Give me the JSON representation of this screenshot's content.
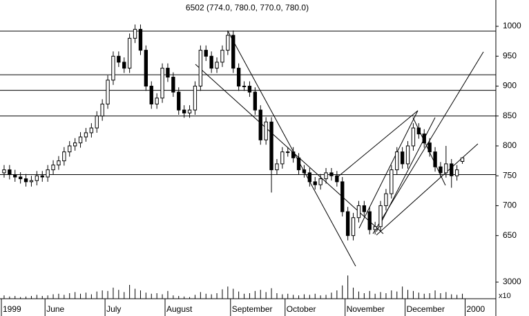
{
  "chart_data": {
    "type": "candlestick",
    "title": "6502 (774.0, 780.0, 770.0, 780.0)",
    "categories": [
      "1999",
      null,
      null,
      null,
      null,
      null,
      null,
      null,
      "June",
      null,
      null,
      null,
      null,
      null,
      null,
      null,
      null,
      null,
      null,
      "July",
      null,
      null,
      null,
      null,
      null,
      null,
      null,
      null,
      null,
      null,
      "August",
      null,
      null,
      null,
      null,
      null,
      null,
      null,
      null,
      null,
      null,
      null,
      "September",
      null,
      null,
      null,
      null,
      null,
      null,
      null,
      null,
      null,
      "October",
      null,
      null,
      null,
      null,
      null,
      null,
      null,
      null,
      null,
      null,
      "November",
      null,
      null,
      null,
      null,
      null,
      null,
      null,
      null,
      null,
      null,
      "December",
      null,
      null,
      null,
      null,
      null,
      null,
      null,
      null,
      null,
      null,
      "2000"
    ],
    "open": [
      755,
      760,
      752,
      748,
      745,
      740,
      742,
      750,
      748,
      760,
      768,
      775,
      790,
      800,
      805,
      815,
      822,
      830,
      850,
      870,
      910,
      950,
      940,
      930,
      980,
      995,
      960,
      900,
      870,
      880,
      930,
      915,
      890,
      860,
      855,
      860,
      900,
      960,
      950,
      930,
      940,
      960,
      985,
      930,
      900,
      900,
      890,
      860,
      810,
      840,
      760,
      770,
      790,
      790,
      780,
      760,
      755,
      740,
      735,
      745,
      755,
      750,
      740,
      690,
      650,
      680,
      700,
      690,
      660,
      665,
      700,
      720,
      760,
      790,
      770,
      800,
      830,
      820,
      805,
      790,
      765,
      755,
      770,
      750,
      774,
      null
    ],
    "high": [
      768,
      768,
      760,
      756,
      753,
      750,
      758,
      758,
      768,
      776,
      783,
      798,
      808,
      813,
      823,
      830,
      838,
      858,
      878,
      918,
      958,
      958,
      948,
      988,
      1003,
      1003,
      968,
      908,
      888,
      938,
      938,
      923,
      898,
      868,
      868,
      908,
      968,
      968,
      958,
      948,
      968,
      993,
      993,
      938,
      908,
      908,
      898,
      868,
      848,
      848,
      778,
      798,
      798,
      798,
      788,
      768,
      763,
      748,
      753,
      763,
      763,
      758,
      748,
      698,
      688,
      708,
      708,
      698,
      673,
      708,
      728,
      768,
      798,
      798,
      808,
      838,
      838,
      828,
      813,
      798,
      773,
      800,
      778,
      768,
      780,
      null
    ],
    "low": [
      747,
      744,
      740,
      737,
      732,
      732,
      734,
      740,
      740,
      752,
      760,
      767,
      782,
      792,
      797,
      807,
      814,
      822,
      842,
      862,
      902,
      932,
      922,
      922,
      972,
      952,
      892,
      862,
      862,
      872,
      907,
      882,
      852,
      847,
      847,
      852,
      892,
      942,
      922,
      922,
      932,
      952,
      922,
      892,
      892,
      882,
      852,
      802,
      802,
      722,
      752,
      762,
      782,
      772,
      752,
      747,
      732,
      727,
      727,
      737,
      742,
      732,
      682,
      642,
      642,
      672,
      682,
      652,
      652,
      657,
      692,
      712,
      752,
      762,
      762,
      792,
      812,
      797,
      782,
      757,
      747,
      747,
      730,
      742,
      770,
      null
    ],
    "close": [
      760,
      752,
      748,
      745,
      740,
      742,
      750,
      748,
      760,
      768,
      775,
      790,
      800,
      805,
      815,
      822,
      830,
      850,
      870,
      910,
      950,
      940,
      930,
      980,
      995,
      960,
      900,
      870,
      880,
      930,
      915,
      890,
      860,
      855,
      860,
      900,
      960,
      950,
      930,
      940,
      960,
      985,
      930,
      900,
      900,
      890,
      860,
      810,
      840,
      760,
      770,
      790,
      790,
      780,
      760,
      755,
      740,
      735,
      745,
      755,
      750,
      740,
      690,
      650,
      680,
      700,
      690,
      660,
      665,
      700,
      720,
      760,
      790,
      770,
      800,
      830,
      820,
      805,
      790,
      765,
      755,
      770,
      750,
      760,
      780,
      null
    ],
    "volume": [
      600,
      400,
      500,
      300,
      400,
      500,
      700,
      500,
      600,
      800,
      900,
      700,
      1000,
      1200,
      900,
      1100,
      800,
      1300,
      1500,
      1400,
      2000,
      1600,
      1200,
      2500,
      1800,
      1500,
      1100,
      900,
      1000,
      800,
      1400,
      600,
      500,
      400,
      300,
      700,
      1200,
      900,
      800,
      1000,
      1700,
      2200,
      1800,
      1300,
      900,
      1000,
      1400,
      1600,
      1200,
      1900,
      1000,
      800,
      900,
      700,
      600,
      800,
      700,
      900,
      600,
      700,
      1100,
      1500,
      2400,
      4200,
      2000,
      1300,
      1000,
      1400,
      900,
      1200,
      1000,
      1500,
      1300,
      2200,
      1600,
      1400,
      1100,
      900,
      1000,
      1500,
      1000,
      1200,
      800,
      700,
      900,
      null
    ],
    "ylim": [
      593,
      1044
    ],
    "yticks": [
      650,
      700,
      750,
      800,
      850,
      900,
      950,
      1000
    ],
    "vlim": [
      0,
      4375
    ],
    "vticks": [
      3000
    ],
    "volume_unit": "x10",
    "levels": [
      992,
      919,
      893,
      850,
      752
    ]
  }
}
